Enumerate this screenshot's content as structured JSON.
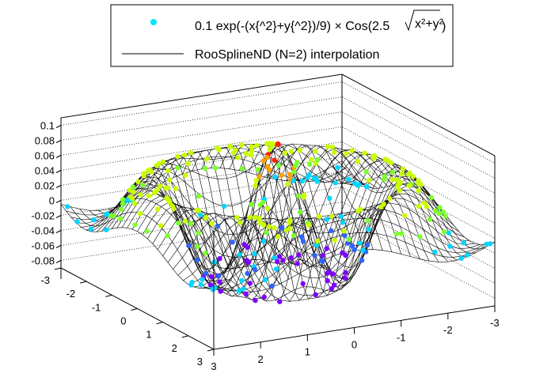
{
  "chart_data": {
    "type": "scatter",
    "subtype": "3d-surface-with-scatter",
    "title": "",
    "xlabel": "",
    "ylabel": "",
    "zlabel": "",
    "xlim": [
      -3,
      3
    ],
    "ylim": [
      -3,
      3
    ],
    "zlim": [
      -0.09,
      0.11
    ],
    "x_ticks": [
      "-3",
      "-2",
      "-1",
      "0",
      "1",
      "2",
      "3"
    ],
    "y_ticks": [
      "3",
      "2",
      "1",
      "0",
      "-1",
      "-2",
      "-3"
    ],
    "z_ticks": [
      "-0.08",
      "-0.06",
      "-0.04",
      "-0.02",
      "0",
      "0.02",
      "0.04",
      "0.06",
      "0.08",
      "0.1"
    ],
    "grid": true,
    "legend_position": "top-center",
    "series": [
      {
        "name": "0.1 exp(-(x{^2}+y{^2})/9) × Cos(2.5",
        "name_radical": "x²+y²",
        "name_suffix": ")",
        "kind": "scatter",
        "color": "#00e5ff",
        "function": "0.1*exp(-(x^2+y^2)/9)*cos(2.5*sqrt(x^2+y^2))",
        "sample_points": [
          {
            "x": 0,
            "y": 0,
            "z": 0.1
          },
          {
            "x": 0.6,
            "y": 0,
            "z": 0.0068
          },
          {
            "x": 1.25,
            "y": 0,
            "z": -0.0831
          },
          {
            "x": 2.5,
            "y": 0,
            "z": 0.0498
          },
          {
            "x": 3.0,
            "y": 0,
            "z": 0.0135
          },
          {
            "x": 0,
            "y": 1.25,
            "z": -0.0831
          },
          {
            "x": 0,
            "y": 2.5,
            "z": 0.0498
          },
          {
            "x": -2.5,
            "y": -2.5,
            "z": -0.0186
          },
          {
            "x": 2.5,
            "y": 2.5,
            "z": -0.0186
          },
          {
            "x": -3,
            "y": 3,
            "z": 0.0005
          }
        ]
      },
      {
        "name": "RooSplineND (N=2) interpolation",
        "kind": "surface-mesh",
        "color": "#000000"
      }
    ]
  },
  "legend": {
    "entry1_prefix": "0.1 exp(-(x{^2}+y{^2})/9) × Cos(2.5",
    "entry1_radical": "x²+y²",
    "entry1_suffix": ")",
    "entry2": "RooSplineND (N=2) interpolation"
  },
  "colors": {
    "background": "#ffffff",
    "mesh": "#000000",
    "marker_palette": [
      "#7f00ff",
      "#2f64ff",
      "#00d6ff",
      "#7cff2e",
      "#c8ff00",
      "#ffa000",
      "#ff2000"
    ]
  }
}
